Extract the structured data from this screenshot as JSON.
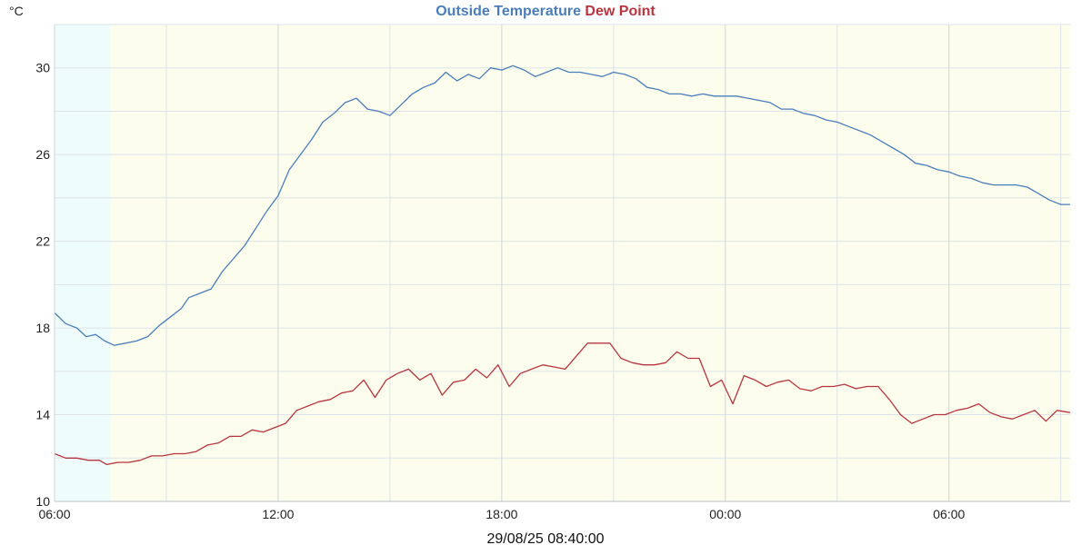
{
  "chart_data": {
    "type": "line",
    "title_parts": [
      {
        "text": "Outside Temperature",
        "color": "#4a7ebb"
      },
      {
        "text": "Dew Point",
        "color": "#b8353f"
      }
    ],
    "ylabel": "°C",
    "ylim": [
      10,
      32
    ],
    "yticks": [
      10,
      14,
      18,
      22,
      26,
      30
    ],
    "xlim": [
      0,
      27.25
    ],
    "xticks": [
      0,
      6,
      12,
      18,
      24
    ],
    "xtick_labels": [
      "06:00",
      "12:00",
      "18:00",
      "00:00",
      "06:00"
    ],
    "grid": true,
    "footer": "29/08/25 08:40:00",
    "x_unit": "hours after 06:00 on the first day",
    "bands": [
      {
        "from": 0,
        "to": 1.5,
        "color": "#eefdfb"
      },
      {
        "from": 1.5,
        "to": 27.25,
        "color": "#fdfdee"
      }
    ],
    "series": [
      {
        "name": "Outside Temperature",
        "color": "#4a7ebb",
        "points": [
          [
            0,
            18.7
          ],
          [
            0.3,
            18.2
          ],
          [
            0.6,
            18.0
          ],
          [
            0.85,
            17.6
          ],
          [
            1.1,
            17.7
          ],
          [
            1.35,
            17.4
          ],
          [
            1.6,
            17.2
          ],
          [
            1.9,
            17.3
          ],
          [
            2.2,
            17.4
          ],
          [
            2.5,
            17.6
          ],
          [
            2.8,
            18.1
          ],
          [
            3.1,
            18.5
          ],
          [
            3.4,
            18.9
          ],
          [
            3.6,
            19.4
          ],
          [
            3.9,
            19.6
          ],
          [
            4.2,
            19.8
          ],
          [
            4.5,
            20.6
          ],
          [
            4.8,
            21.2
          ],
          [
            5.1,
            21.8
          ],
          [
            5.4,
            22.6
          ],
          [
            5.7,
            23.4
          ],
          [
            6.0,
            24.1
          ],
          [
            6.3,
            25.3
          ],
          [
            6.6,
            26.0
          ],
          [
            6.9,
            26.7
          ],
          [
            7.2,
            27.5
          ],
          [
            7.5,
            27.9
          ],
          [
            7.8,
            28.4
          ],
          [
            8.1,
            28.6
          ],
          [
            8.4,
            28.1
          ],
          [
            8.7,
            28.0
          ],
          [
            9.0,
            27.8
          ],
          [
            9.3,
            28.3
          ],
          [
            9.6,
            28.8
          ],
          [
            9.9,
            29.1
          ],
          [
            10.2,
            29.3
          ],
          [
            10.5,
            29.8
          ],
          [
            10.8,
            29.4
          ],
          [
            11.1,
            29.7
          ],
          [
            11.4,
            29.5
          ],
          [
            11.7,
            30.0
          ],
          [
            12.0,
            29.9
          ],
          [
            12.3,
            30.1
          ],
          [
            12.6,
            29.9
          ],
          [
            12.9,
            29.6
          ],
          [
            13.2,
            29.8
          ],
          [
            13.5,
            30.0
          ],
          [
            13.8,
            29.8
          ],
          [
            14.1,
            29.8
          ],
          [
            14.4,
            29.7
          ],
          [
            14.7,
            29.6
          ],
          [
            15.0,
            29.8
          ],
          [
            15.3,
            29.7
          ],
          [
            15.6,
            29.5
          ],
          [
            15.9,
            29.1
          ],
          [
            16.2,
            29.0
          ],
          [
            16.5,
            28.8
          ],
          [
            16.8,
            28.8
          ],
          [
            17.1,
            28.7
          ],
          [
            17.4,
            28.8
          ],
          [
            17.7,
            28.7
          ],
          [
            18.0,
            28.7
          ],
          [
            18.3,
            28.7
          ],
          [
            18.6,
            28.6
          ],
          [
            18.9,
            28.5
          ],
          [
            19.2,
            28.4
          ],
          [
            19.5,
            28.1
          ],
          [
            19.8,
            28.1
          ],
          [
            20.1,
            27.9
          ],
          [
            20.4,
            27.8
          ],
          [
            20.7,
            27.6
          ],
          [
            21.0,
            27.5
          ],
          [
            21.3,
            27.3
          ],
          [
            21.6,
            27.1
          ],
          [
            21.9,
            26.9
          ],
          [
            22.2,
            26.6
          ],
          [
            22.5,
            26.3
          ],
          [
            22.8,
            26.0
          ],
          [
            23.1,
            25.6
          ],
          [
            23.4,
            25.5
          ],
          [
            23.7,
            25.3
          ],
          [
            24.0,
            25.2
          ],
          [
            24.3,
            25.0
          ],
          [
            24.6,
            24.9
          ],
          [
            24.9,
            24.7
          ],
          [
            25.2,
            24.6
          ],
          [
            25.5,
            24.6
          ],
          [
            25.8,
            24.6
          ],
          [
            26.1,
            24.5
          ],
          [
            26.4,
            24.2
          ],
          [
            26.7,
            23.9
          ],
          [
            27.0,
            23.7
          ],
          [
            27.25,
            23.7
          ]
        ]
      },
      {
        "name": "Dew Point",
        "color": "#b8353f",
        "points": [
          [
            0,
            12.2
          ],
          [
            0.3,
            12.0
          ],
          [
            0.6,
            12.0
          ],
          [
            0.9,
            11.9
          ],
          [
            1.2,
            11.9
          ],
          [
            1.4,
            11.7
          ],
          [
            1.7,
            11.8
          ],
          [
            2.0,
            11.8
          ],
          [
            2.3,
            11.9
          ],
          [
            2.6,
            12.1
          ],
          [
            2.9,
            12.1
          ],
          [
            3.2,
            12.2
          ],
          [
            3.5,
            12.2
          ],
          [
            3.8,
            12.3
          ],
          [
            4.1,
            12.6
          ],
          [
            4.4,
            12.7
          ],
          [
            4.7,
            13.0
          ],
          [
            5.0,
            13.0
          ],
          [
            5.3,
            13.3
          ],
          [
            5.6,
            13.2
          ],
          [
            5.9,
            13.4
          ],
          [
            6.2,
            13.6
          ],
          [
            6.5,
            14.2
          ],
          [
            6.8,
            14.4
          ],
          [
            7.1,
            14.6
          ],
          [
            7.4,
            14.7
          ],
          [
            7.7,
            15.0
          ],
          [
            8.0,
            15.1
          ],
          [
            8.3,
            15.6
          ],
          [
            8.6,
            14.8
          ],
          [
            8.9,
            15.6
          ],
          [
            9.2,
            15.9
          ],
          [
            9.5,
            16.1
          ],
          [
            9.8,
            15.6
          ],
          [
            10.1,
            15.9
          ],
          [
            10.4,
            14.9
          ],
          [
            10.7,
            15.5
          ],
          [
            11.0,
            15.6
          ],
          [
            11.3,
            16.1
          ],
          [
            11.6,
            15.7
          ],
          [
            11.9,
            16.3
          ],
          [
            12.2,
            15.3
          ],
          [
            12.5,
            15.9
          ],
          [
            12.8,
            16.1
          ],
          [
            13.1,
            16.3
          ],
          [
            13.4,
            16.2
          ],
          [
            13.7,
            16.1
          ],
          [
            14.0,
            16.7
          ],
          [
            14.3,
            17.3
          ],
          [
            14.6,
            17.3
          ],
          [
            14.9,
            17.3
          ],
          [
            15.2,
            16.6
          ],
          [
            15.5,
            16.4
          ],
          [
            15.8,
            16.3
          ],
          [
            16.1,
            16.3
          ],
          [
            16.4,
            16.4
          ],
          [
            16.7,
            16.9
          ],
          [
            17.0,
            16.6
          ],
          [
            17.3,
            16.6
          ],
          [
            17.6,
            15.3
          ],
          [
            17.9,
            15.6
          ],
          [
            18.2,
            14.5
          ],
          [
            18.5,
            15.8
          ],
          [
            18.8,
            15.6
          ],
          [
            19.1,
            15.3
          ],
          [
            19.4,
            15.5
          ],
          [
            19.7,
            15.6
          ],
          [
            20.0,
            15.2
          ],
          [
            20.3,
            15.1
          ],
          [
            20.6,
            15.3
          ],
          [
            20.9,
            15.3
          ],
          [
            21.2,
            15.4
          ],
          [
            21.5,
            15.2
          ],
          [
            21.8,
            15.3
          ],
          [
            22.1,
            15.3
          ],
          [
            22.4,
            14.7
          ],
          [
            22.7,
            14.0
          ],
          [
            23.0,
            13.6
          ],
          [
            23.3,
            13.8
          ],
          [
            23.6,
            14.0
          ],
          [
            23.9,
            14.0
          ],
          [
            24.2,
            14.2
          ],
          [
            24.5,
            14.3
          ],
          [
            24.8,
            14.5
          ],
          [
            25.1,
            14.1
          ],
          [
            25.4,
            13.9
          ],
          [
            25.7,
            13.8
          ],
          [
            26.0,
            14.0
          ],
          [
            26.3,
            14.2
          ],
          [
            26.6,
            13.7
          ],
          [
            26.9,
            14.2
          ],
          [
            27.25,
            14.1
          ]
        ]
      }
    ]
  }
}
